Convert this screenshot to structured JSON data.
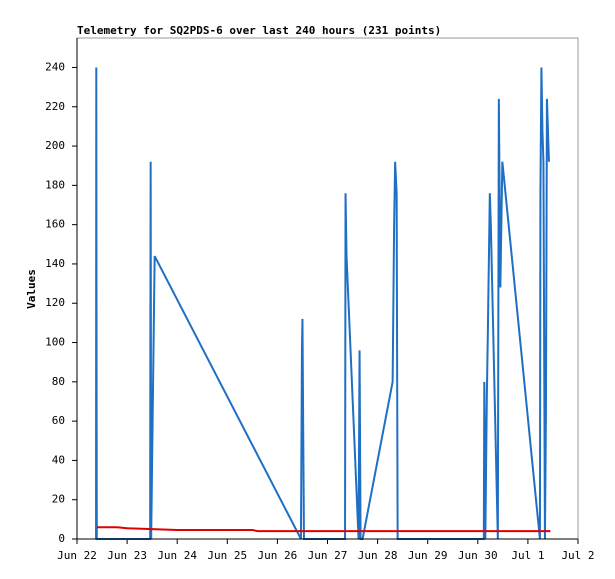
{
  "chart_data": {
    "type": "line",
    "title": "Telemetry for SQ2PDS-6 over last 240 hours (231 points)",
    "y_label": "Values",
    "xlim": [
      0,
      10
    ],
    "xticks": [
      {
        "value": 0,
        "label": "Jun 22"
      },
      {
        "value": 1,
        "label": "Jun 23"
      },
      {
        "value": 2,
        "label": "Jun 24"
      },
      {
        "value": 3,
        "label": "Jun 25"
      },
      {
        "value": 4,
        "label": "Jun 26"
      },
      {
        "value": 5,
        "label": "Jun 27"
      },
      {
        "value": 6,
        "label": "Jun 28"
      },
      {
        "value": 7,
        "label": "Jun 29"
      },
      {
        "value": 8,
        "label": "Jun 30"
      },
      {
        "value": 9,
        "label": "Jul 1"
      },
      {
        "value": 10,
        "label": "Jul 2"
      }
    ],
    "ylim": [
      0,
      255
    ],
    "yticks": [
      0,
      20,
      40,
      60,
      80,
      100,
      120,
      140,
      160,
      180,
      200,
      220,
      240
    ],
    "series": [
      {
        "color": "#1f6fc4",
        "x": [
          0.38,
          0.385,
          0.39,
          0.395,
          1.46,
          1.465,
          1.47,
          1.475,
          1.48,
          1.55,
          4.47,
          4.49,
          4.5,
          4.53,
          4.54,
          5.35,
          5.36,
          5.38,
          5.42,
          5.62,
          5.64,
          5.66,
          5.7,
          6.3,
          6.33,
          6.35,
          6.38,
          6.4,
          8.12,
          8.13,
          8.15,
          8.18,
          8.2,
          8.24,
          8.26,
          8.4,
          8.42,
          8.45,
          8.49,
          9.24,
          9.25,
          9.27,
          9.29,
          9.31,
          9.34,
          9.36,
          9.38,
          9.42
        ],
        "values": [
          0,
          240,
          104,
          0,
          0,
          112,
          192,
          96,
          0,
          144,
          0,
          96,
          112,
          0,
          0,
          0,
          176,
          144,
          120,
          0,
          96,
          0,
          0,
          80,
          160,
          192,
          176,
          0,
          0,
          80,
          0,
          72,
          104,
          176,
          160,
          0,
          224,
          128,
          192,
          0,
          176,
          240,
          208,
          192,
          0,
          64,
          224,
          192
        ]
      },
      {
        "color": "#e00000",
        "x": [
          0.4,
          0.8,
          1.0,
          1.5,
          2.0,
          3.5,
          3.6,
          9.45
        ],
        "values": [
          6,
          6,
          5.5,
          5,
          4.6,
          4.6,
          4,
          4
        ]
      }
    ]
  }
}
